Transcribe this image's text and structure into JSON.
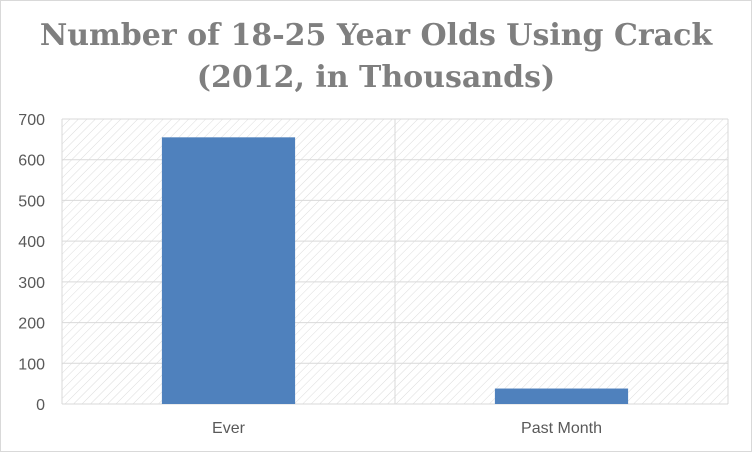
{
  "chart_data": {
    "type": "bar",
    "title_lines": [
      "Number of 18-25 Year Olds Using Crack",
      "(2012, in Thousands)"
    ],
    "categories": [
      "Ever",
      "Past Month"
    ],
    "values": [
      655,
      38
    ],
    "ylim": [
      0,
      700
    ],
    "yticks": [
      0,
      100,
      200,
      300,
      400,
      500,
      600,
      700
    ],
    "xlabel": "",
    "ylabel": "",
    "grid": true,
    "legend": "none"
  },
  "colors": {
    "bar": "#4f81bd",
    "grid": "#d9d9d9",
    "axis_text": "#595959",
    "title": "#7f7f7f",
    "plot_hatch": "#d9d9d9"
  }
}
